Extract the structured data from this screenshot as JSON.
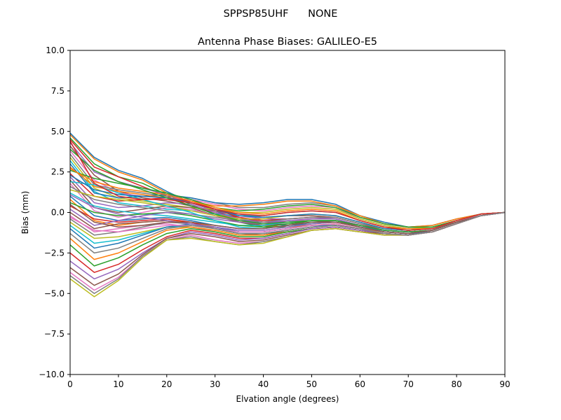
{
  "chart_data": {
    "type": "line",
    "suptitle": "SPPSP85UHF      NONE",
    "title": "Antenna Phase Biases: GALILEO-E5",
    "xlabel": "Elvation angle (degrees)",
    "ylabel": "Bias (mm)",
    "xlim": [
      0,
      90
    ],
    "ylim": [
      -10,
      10
    ],
    "xticks": [
      0,
      10,
      20,
      30,
      40,
      50,
      60,
      70,
      80,
      90
    ],
    "yticks": [
      -10.0,
      -7.5,
      -5.0,
      -2.5,
      0.0,
      2.5,
      5.0,
      7.5,
      10.0
    ],
    "xtick_labels": [
      "0",
      "10",
      "20",
      "30",
      "40",
      "50",
      "60",
      "70",
      "80",
      "90"
    ],
    "ytick_labels": [
      "−10.0",
      "−7.5",
      "−5.0",
      "−2.5",
      "0.0",
      "2.5",
      "5.0",
      "7.5",
      "10.0"
    ],
    "grid": false,
    "legend": "none",
    "x": [
      0,
      5,
      10,
      15,
      20,
      25,
      30,
      35,
      40,
      45,
      50,
      55,
      60,
      65,
      70,
      75,
      80,
      85,
      90
    ],
    "colors": [
      "#1f77b4",
      "#ff7f0e",
      "#2ca02c",
      "#d62728",
      "#9467bd",
      "#8c564b",
      "#e377c2",
      "#7f7f7f",
      "#bcbd22",
      "#17becf"
    ],
    "series": [
      {
        "values": [
          4.9,
          3.4,
          2.6,
          2.1,
          1.3,
          0.6,
          0.1,
          -0.4,
          -0.7,
          -0.8,
          -0.7,
          -0.6,
          -0.9,
          -1.1,
          -1.2,
          -1.1,
          -0.6,
          -0.2,
          0.0
        ]
      },
      {
        "values": [
          4.8,
          3.3,
          2.5,
          2.0,
          1.2,
          0.5,
          0.0,
          -0.5,
          -0.8,
          -0.9,
          -0.8,
          -0.7,
          -1.0,
          -1.2,
          -1.3,
          -1.2,
          -0.7,
          -0.2,
          0.0
        ]
      },
      {
        "values": [
          4.6,
          3.0,
          2.2,
          1.8,
          1.1,
          0.5,
          -0.1,
          -0.6,
          -0.9,
          -0.9,
          -0.7,
          -0.6,
          -0.9,
          -1.2,
          -1.3,
          -1.2,
          -0.7,
          -0.2,
          0.0
        ]
      },
      {
        "values": [
          4.5,
          2.8,
          2.2,
          1.6,
          1.0,
          0.4,
          0.0,
          -0.3,
          -0.6,
          -0.6,
          -0.5,
          -0.5,
          -0.9,
          -1.2,
          -1.3,
          -1.2,
          -0.7,
          -0.2,
          0.0
        ]
      },
      {
        "values": [
          4.3,
          2.5,
          1.9,
          1.5,
          1.1,
          0.6,
          0.1,
          -0.2,
          -0.4,
          -0.4,
          -0.3,
          -0.4,
          -0.8,
          -1.1,
          -1.2,
          -1.1,
          -0.6,
          -0.2,
          0.0
        ]
      },
      {
        "values": [
          4.1,
          2.3,
          1.3,
          0.9,
          0.7,
          0.4,
          0.1,
          -0.1,
          -0.3,
          -0.2,
          -0.2,
          -0.3,
          -0.7,
          -1.1,
          -1.2,
          -1.1,
          -0.6,
          -0.2,
          0.0
        ]
      },
      {
        "values": [
          3.8,
          2.0,
          1.2,
          1.0,
          0.9,
          0.8,
          0.5,
          0.2,
          0.1,
          0.3,
          0.4,
          0.3,
          -0.4,
          -0.8,
          -1.0,
          -0.9,
          -0.5,
          -0.2,
          0.0
        ]
      },
      {
        "values": [
          3.6,
          1.7,
          1.4,
          1.2,
          1.0,
          0.9,
          0.6,
          0.3,
          0.3,
          0.5,
          0.6,
          0.4,
          -0.3,
          -0.7,
          -0.9,
          -0.9,
          -0.5,
          -0.1,
          0.0
        ]
      },
      {
        "values": [
          3.4,
          1.5,
          0.9,
          0.7,
          0.5,
          0.3,
          0.2,
          0.0,
          0.0,
          0.2,
          0.3,
          0.2,
          -0.4,
          -0.8,
          -1.0,
          -0.9,
          -0.5,
          -0.1,
          0.0
        ]
      },
      {
        "values": [
          3.2,
          1.3,
          0.6,
          0.4,
          0.2,
          0.1,
          -0.1,
          -0.2,
          -0.2,
          0.0,
          0.1,
          0.0,
          -0.5,
          -0.9,
          -1.0,
          -1.0,
          -0.5,
          -0.1,
          0.0
        ]
      },
      {
        "values": [
          3.0,
          1.2,
          0.9,
          1.0,
          1.1,
          0.9,
          0.6,
          0.5,
          0.6,
          0.8,
          0.8,
          0.5,
          -0.2,
          -0.6,
          -0.9,
          -0.8,
          -0.4,
          -0.1,
          0.0
        ]
      },
      {
        "values": [
          2.8,
          1.6,
          1.3,
          1.1,
          0.9,
          0.7,
          0.4,
          0.4,
          0.5,
          0.7,
          0.7,
          0.4,
          -0.2,
          -0.7,
          -0.9,
          -0.8,
          -0.4,
          -0.1,
          0.0
        ]
      },
      {
        "values": [
          2.6,
          2.1,
          1.8,
          1.5,
          1.2,
          0.8,
          0.3,
          0.1,
          0.2,
          0.4,
          0.5,
          0.3,
          -0.3,
          -0.7,
          -0.9,
          -0.9,
          -0.5,
          -0.1,
          0.0
        ]
      },
      {
        "values": [
          2.4,
          1.0,
          0.7,
          0.8,
          0.9,
          0.7,
          0.2,
          -0.3,
          -0.5,
          -0.4,
          -0.3,
          -0.3,
          -0.7,
          -1.0,
          -1.1,
          -1.0,
          -0.6,
          -0.2,
          0.0
        ]
      },
      {
        "values": [
          2.2,
          0.6,
          0.3,
          0.4,
          0.6,
          0.5,
          0.0,
          -0.4,
          -0.6,
          -0.5,
          -0.4,
          -0.4,
          -0.8,
          -1.1,
          -1.2,
          -1.1,
          -0.6,
          -0.2,
          0.0
        ]
      },
      {
        "values": [
          2.0,
          0.3,
          0.0,
          0.2,
          0.4,
          0.3,
          -0.2,
          -0.6,
          -0.8,
          -0.7,
          -0.6,
          -0.5,
          -0.9,
          -1.2,
          -1.3,
          -1.2,
          -0.7,
          -0.2,
          0.0
        ]
      },
      {
        "values": [
          1.8,
          0.1,
          -0.3,
          0.0,
          0.3,
          0.2,
          -0.2,
          -0.5,
          -0.7,
          -0.6,
          -0.4,
          -0.4,
          -0.8,
          -1.1,
          -1.2,
          -1.1,
          -0.6,
          -0.2,
          0.0
        ]
      },
      {
        "values": [
          1.6,
          0.8,
          0.5,
          0.3,
          0.1,
          -0.1,
          -0.3,
          -0.5,
          -0.6,
          -0.4,
          -0.3,
          -0.3,
          -0.7,
          -1.0,
          -1.1,
          -1.0,
          -0.6,
          -0.2,
          0.0
        ]
      },
      {
        "values": [
          1.4,
          1.0,
          0.8,
          0.6,
          0.4,
          0.1,
          -0.2,
          -0.4,
          -0.4,
          -0.2,
          -0.1,
          -0.2,
          -0.6,
          -1.0,
          -1.1,
          -1.0,
          -0.5,
          -0.1,
          0.0
        ]
      },
      {
        "values": [
          1.2,
          0.4,
          0.1,
          -0.1,
          -0.2,
          -0.4,
          -0.6,
          -0.8,
          -0.8,
          -0.6,
          -0.5,
          -0.5,
          -0.8,
          -1.1,
          -1.2,
          -1.1,
          -0.6,
          -0.2,
          0.0
        ]
      },
      {
        "values": [
          1.0,
          -0.2,
          -0.5,
          -0.4,
          -0.3,
          -0.5,
          -0.8,
          -1.0,
          -1.0,
          -0.8,
          -0.6,
          -0.6,
          -0.9,
          -1.2,
          -1.3,
          -1.2,
          -0.7,
          -0.2,
          0.0
        ]
      },
      {
        "values": [
          0.8,
          -0.5,
          -0.8,
          -0.6,
          -0.5,
          -0.6,
          -0.9,
          -1.2,
          -1.2,
          -1.0,
          -0.8,
          -0.7,
          -1.0,
          -1.3,
          -1.4,
          -1.2,
          -0.7,
          -0.2,
          0.0
        ]
      },
      {
        "values": [
          0.6,
          0.0,
          -0.2,
          -0.1,
          0.0,
          -0.2,
          -0.5,
          -0.8,
          -0.9,
          -0.7,
          -0.5,
          -0.5,
          -0.8,
          -1.1,
          -1.2,
          -1.1,
          -0.6,
          -0.2,
          0.0
        ]
      },
      {
        "values": [
          0.4,
          -0.4,
          -0.6,
          -0.5,
          -0.4,
          -0.6,
          -1.0,
          -1.3,
          -1.3,
          -1.1,
          -0.9,
          -0.8,
          -1.0,
          -1.3,
          -1.4,
          -1.2,
          -0.7,
          -0.2,
          0.0
        ]
      },
      {
        "values": [
          0.2,
          -0.8,
          -0.5,
          -0.2,
          0.0,
          -0.1,
          -0.4,
          -0.6,
          -0.7,
          -0.5,
          -0.4,
          -0.4,
          -0.8,
          -1.1,
          -1.2,
          -1.1,
          -0.6,
          -0.2,
          0.0
        ]
      },
      {
        "values": [
          0.0,
          -1.0,
          -0.7,
          -0.6,
          -0.5,
          -0.7,
          -1.0,
          -1.3,
          -1.4,
          -1.1,
          -0.9,
          -0.8,
          -1.0,
          -1.3,
          -1.4,
          -1.2,
          -0.7,
          -0.2,
          0.0
        ]
      },
      {
        "values": [
          -0.2,
          -1.2,
          -1.0,
          -0.8,
          -0.7,
          -0.9,
          -1.2,
          -1.5,
          -1.5,
          -1.2,
          -1.0,
          -0.9,
          -1.1,
          -1.3,
          -1.4,
          -1.2,
          -0.7,
          -0.2,
          0.0
        ]
      },
      {
        "values": [
          -0.4,
          -1.4,
          -1.2,
          -0.9,
          -0.6,
          -0.7,
          -1.0,
          -1.3,
          -1.3,
          -1.1,
          -0.9,
          -0.8,
          -1.0,
          -1.3,
          -1.4,
          -1.2,
          -0.7,
          -0.2,
          0.0
        ]
      },
      {
        "values": [
          -0.6,
          -1.6,
          -1.5,
          -1.2,
          -0.9,
          -0.9,
          -1.1,
          -1.4,
          -1.4,
          -1.2,
          -1.0,
          -0.9,
          -1.1,
          -1.3,
          -1.4,
          -1.2,
          -0.7,
          -0.2,
          0.0
        ]
      },
      {
        "values": [
          -0.8,
          -1.9,
          -1.7,
          -1.3,
          -0.9,
          -0.8,
          -1.0,
          -1.3,
          -1.3,
          -1.1,
          -0.9,
          -0.8,
          -1.0,
          -1.3,
          -1.4,
          -1.2,
          -0.7,
          -0.2,
          0.0
        ]
      },
      {
        "values": [
          -1.0,
          -2.2,
          -1.9,
          -1.4,
          -0.9,
          -0.7,
          -0.9,
          -1.2,
          -1.2,
          -1.0,
          -0.8,
          -0.8,
          -1.0,
          -1.3,
          -1.4,
          -1.2,
          -0.7,
          -0.2,
          0.0
        ]
      },
      {
        "values": [
          -1.6,
          -2.9,
          -2.5,
          -1.8,
          -1.1,
          -0.9,
          -1.1,
          -1.4,
          -1.4,
          -1.2,
          -1.0,
          -0.9,
          -1.1,
          -1.3,
          -1.4,
          -1.2,
          -0.7,
          -0.2,
          0.0
        ]
      },
      {
        "values": [
          -2.0,
          -3.3,
          -2.8,
          -2.0,
          -1.3,
          -1.0,
          -1.2,
          -1.5,
          -1.5,
          -1.2,
          -1.0,
          -0.9,
          -1.1,
          -1.3,
          -1.4,
          -1.2,
          -0.7,
          -0.2,
          0.0
        ]
      },
      {
        "values": [
          -2.5,
          -3.7,
          -3.2,
          -2.3,
          -1.5,
          -1.1,
          -1.3,
          -1.6,
          -1.6,
          -1.3,
          -1.0,
          -0.9,
          -1.1,
          -1.3,
          -1.4,
          -1.2,
          -0.7,
          -0.2,
          0.0
        ]
      },
      {
        "values": [
          -3.0,
          -4.1,
          -3.5,
          -2.5,
          -1.6,
          -1.2,
          -1.4,
          -1.7,
          -1.6,
          -1.3,
          -1.0,
          -0.9,
          -1.1,
          -1.3,
          -1.4,
          -1.2,
          -0.7,
          -0.2,
          0.0
        ]
      },
      {
        "values": [
          -3.4,
          -4.5,
          -3.8,
          -2.6,
          -1.6,
          -1.3,
          -1.5,
          -1.8,
          -1.7,
          -1.4,
          -1.1,
          -1.0,
          -1.2,
          -1.3,
          -1.4,
          -1.2,
          -0.7,
          -0.2,
          0.0
        ]
      },
      {
        "values": [
          -3.7,
          -4.8,
          -4.0,
          -2.7,
          -1.7,
          -1.4,
          -1.7,
          -1.9,
          -1.8,
          -1.5,
          -1.1,
          -1.0,
          -1.2,
          -1.4,
          -1.4,
          -1.2,
          -0.7,
          -0.2,
          0.0
        ]
      },
      {
        "values": [
          -3.9,
          -5.0,
          -4.1,
          -2.7,
          -1.7,
          -1.5,
          -1.8,
          -2.0,
          -1.8,
          -1.5,
          -1.1,
          -1.0,
          -1.2,
          -1.4,
          -1.4,
          -1.2,
          -0.7,
          -0.2,
          0.0
        ]
      },
      {
        "values": [
          -4.1,
          -5.2,
          -4.2,
          -2.8,
          -1.7,
          -1.6,
          -1.8,
          -2.0,
          -1.9,
          -1.5,
          -1.1,
          -1.0,
          -1.2,
          -1.4,
          -1.4,
          -1.2,
          -0.7,
          -0.2,
          0.0
        ]
      },
      {
        "values": [
          1.9,
          1.7,
          1.2,
          0.8,
          0.4,
          0.0,
          -0.5,
          -0.9,
          -1.0,
          -0.8,
          -0.6,
          -0.6,
          -0.9,
          -1.2,
          -1.3,
          -1.1,
          -0.6,
          -0.2,
          0.0
        ]
      },
      {
        "values": [
          2.3,
          1.4,
          1.1,
          1.0,
          0.9,
          0.6,
          0.2,
          -0.2,
          -0.3,
          -0.2,
          -0.1,
          -0.2,
          -0.6,
          -1.0,
          -1.1,
          -1.0,
          -0.5,
          -0.1,
          0.0
        ]
      },
      {
        "values": [
          2.7,
          1.9,
          1.5,
          1.3,
          1.1,
          0.7,
          0.3,
          0.0,
          -0.1,
          0.1,
          0.2,
          0.1,
          -0.5,
          -0.9,
          -1.0,
          -1.0,
          -0.5,
          -0.1,
          0.0
        ]
      },
      {
        "values": [
          3.9,
          2.6,
          1.9,
          1.4,
          0.9,
          0.4,
          -0.1,
          -0.5,
          -0.7,
          -0.6,
          -0.5,
          -0.5,
          -0.8,
          -1.1,
          -1.2,
          -1.1,
          -0.6,
          -0.2,
          0.0
        ]
      },
      {
        "values": [
          4.4,
          1.8,
          1.0,
          0.8,
          0.8,
          0.6,
          0.2,
          -0.1,
          -0.2,
          0.0,
          0.1,
          0.0,
          -0.5,
          -0.9,
          -1.1,
          -1.0,
          -0.5,
          -0.1,
          0.0
        ]
      },
      {
        "values": [
          1.1,
          0.3,
          -0.1,
          -0.3,
          -0.5,
          -0.7,
          -0.9,
          -1.1,
          -1.1,
          -0.9,
          -0.7,
          -0.6,
          -0.9,
          -1.2,
          -1.3,
          -1.1,
          -0.6,
          -0.2,
          0.0
        ]
      },
      {
        "values": [
          0.5,
          -0.6,
          -0.9,
          -0.8,
          -0.6,
          -0.6,
          -0.8,
          -1.0,
          -1.0,
          -0.8,
          -0.6,
          -0.6,
          -0.9,
          -1.2,
          -1.3,
          -1.1,
          -0.6,
          -0.2,
          0.0
        ]
      },
      {
        "values": [
          -0.3,
          -1.1,
          -1.2,
          -1.0,
          -0.8,
          -0.8,
          -1.0,
          -1.2,
          -1.2,
          -1.0,
          -0.8,
          -0.7,
          -1.0,
          -1.3,
          -1.4,
          -1.2,
          -0.7,
          -0.2,
          0.0
        ]
      },
      {
        "values": [
          -1.3,
          -2.5,
          -2.2,
          -1.6,
          -1.0,
          -0.8,
          -1.0,
          -1.3,
          -1.3,
          -1.1,
          -0.9,
          -0.8,
          -1.0,
          -1.3,
          -1.4,
          -1.2,
          -0.7,
          -0.2,
          0.0
        ]
      }
    ]
  }
}
